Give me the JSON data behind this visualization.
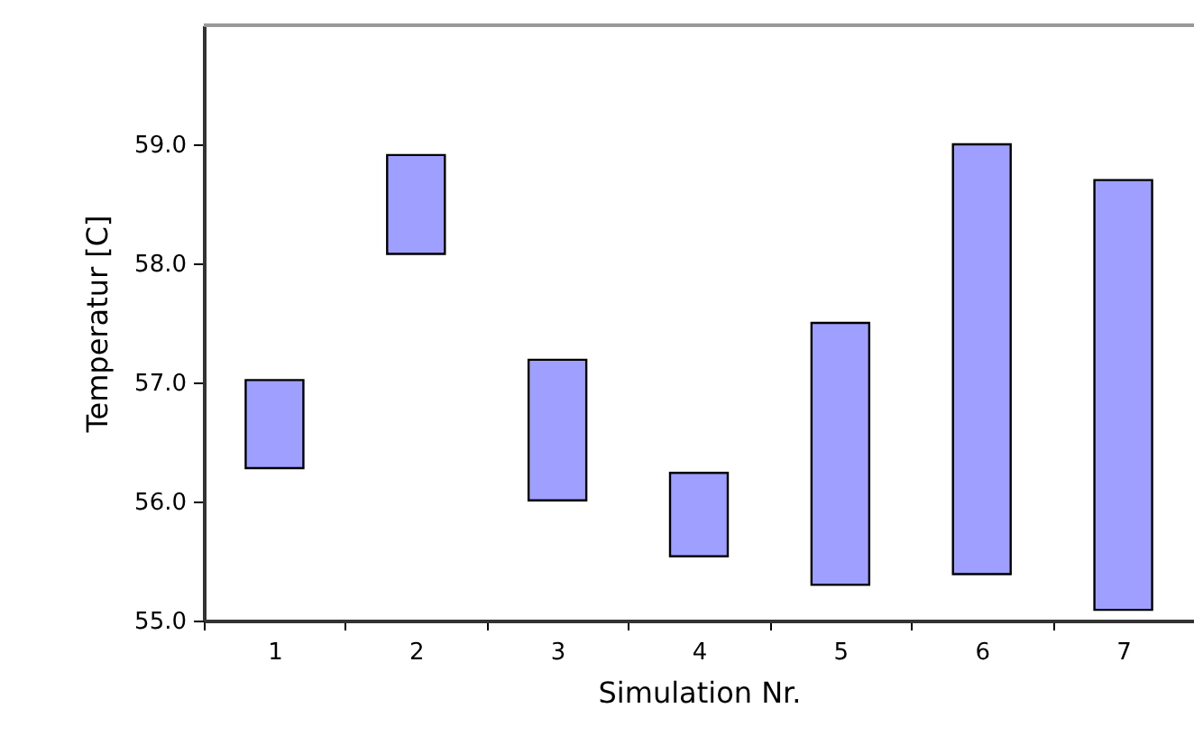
{
  "chart_data": {
    "type": "bar",
    "xlabel": "Simulation Nr.",
    "ylabel": "Temperatur [C]",
    "categories": [
      "1",
      "2",
      "3",
      "4",
      "5",
      "6",
      "7"
    ],
    "base": [
      56.28,
      58.08,
      56.01,
      55.54,
      55.3,
      55.39,
      55.09
    ],
    "values": [
      0.74,
      0.83,
      1.18,
      0.7,
      2.2,
      3.61,
      3.61
    ],
    "color": "#9f9fff",
    "ylim": [
      55,
      60
    ],
    "yticks": [
      {
        "value": 55,
        "label": "55.0"
      },
      {
        "value": 56,
        "label": "56.0"
      },
      {
        "value": 57,
        "label": "57.0"
      },
      {
        "value": 58,
        "label": "58.0"
      },
      {
        "value": 59,
        "label": "59.0"
      }
    ],
    "grid": false
  }
}
